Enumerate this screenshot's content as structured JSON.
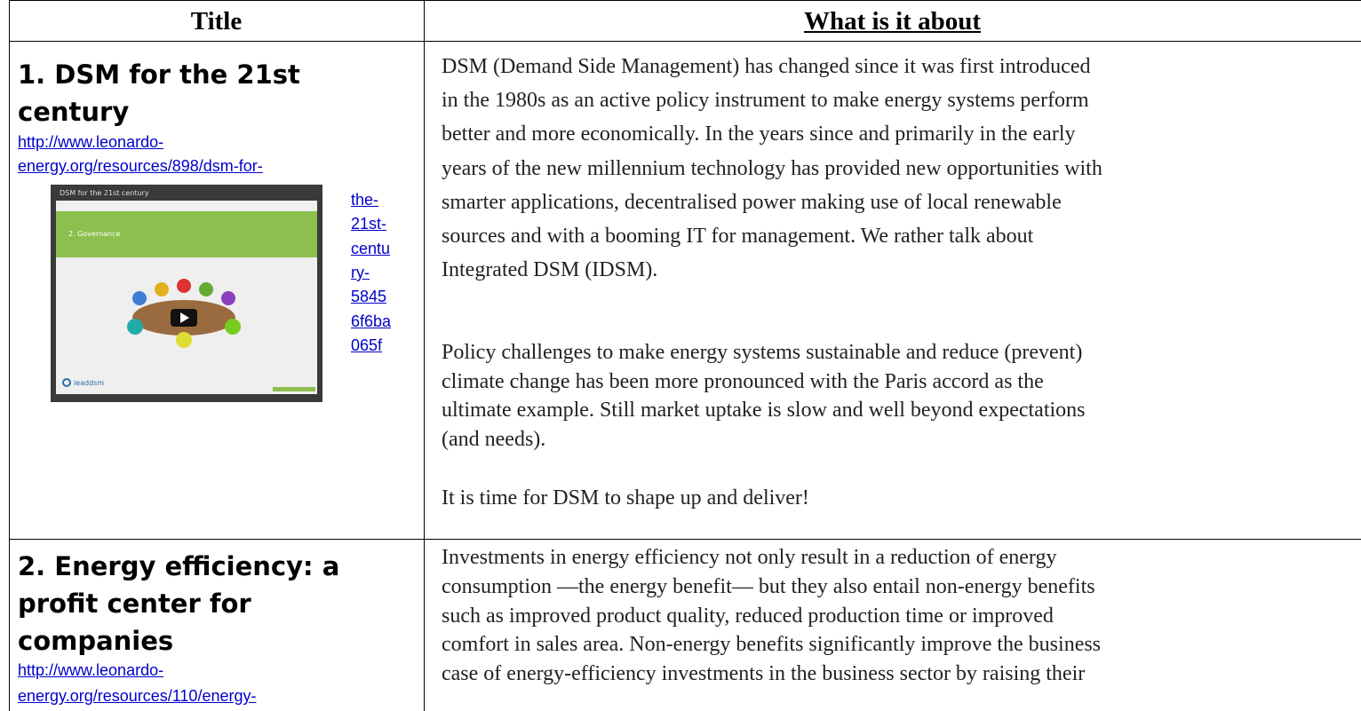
{
  "header": {
    "title": "Title",
    "about": "What is it about"
  },
  "rows": [
    {
      "title_lines": [
        "1. DSM for the 21st",
        "century"
      ],
      "link_lines": [
        "http://www.leonardo-",
        "energy.org/resources/898/dsm-for-",
        "the-",
        "21st-",
        "centu",
        "ry-",
        "5845",
        "6f6ba",
        "065f"
      ],
      "image": {
        "caption": "DSM for the 21st century",
        "slide": "2. Governance",
        "logo": "leaddsm"
      },
      "paragraphs": [
        [
          "DSM (Demand Side Management) has changed since it was first introduced",
          "in the 1980s as an active policy instrument to make energy systems perform",
          "better and more economically.  In the years since and primarily in the early",
          "years of the new millennium  technology has provided new opportunities with",
          "smarter applications, decentralised power making use of local renewable",
          "sources and with a booming IT for management. We rather talk about",
          "Integrated DSM (IDSM)."
        ],
        [
          "Policy challenges to make energy systems sustainable and reduce (prevent)",
          "climate change has been more pronounced with the Paris accord as the",
          "ultimate example. Still market uptake is slow and well beyond expectations",
          "(and needs)."
        ],
        [
          "It is time for DSM to shape up and deliver!"
        ]
      ]
    },
    {
      "title_lines": [
        "2. Energy efficiency: a",
        "profit center for",
        "companies"
      ],
      "link_lines": [
        "http://www.leonardo-",
        "energy.org/resources/110/energy-"
      ],
      "paragraphs": [
        [
          "Investments in energy efficiency not only result in a reduction of energy",
          "consumption —the energy benefit— but they also entail non-energy benefits",
          "such as improved product quality, reduced production time or improved",
          "comfort in sales area. Non-energy benefits significantly improve the business",
          "case of energy-efficiency investments in the business sector by raising their"
        ]
      ]
    }
  ]
}
